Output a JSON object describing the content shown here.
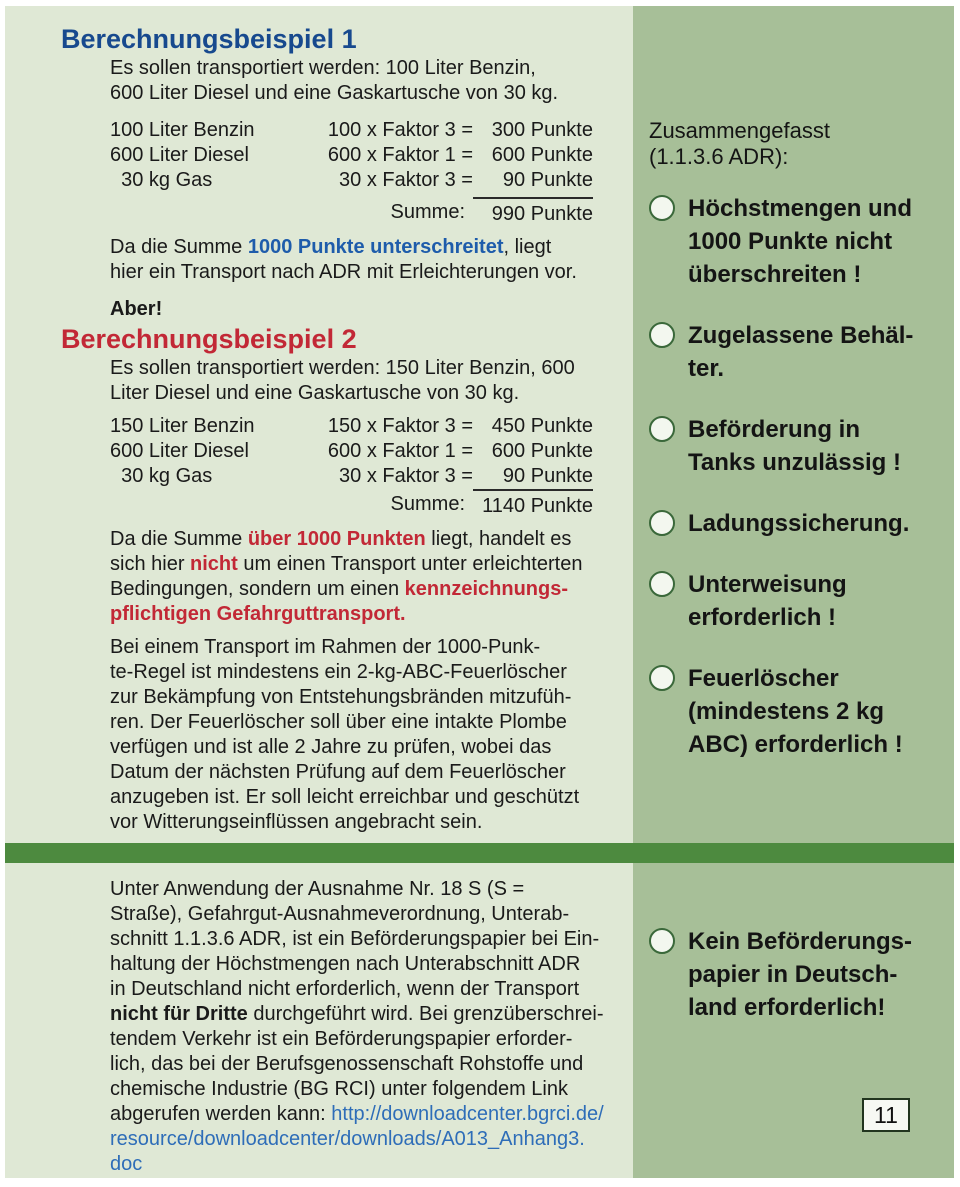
{
  "colors": {
    "left_background": "#dfe8d5",
    "right_background": "#a7bf98",
    "divider_green": "#4d8a3f",
    "heading_blue": "#17498e",
    "heading_red": "#c22836",
    "inline_blue": "#1e5cab",
    "inline_red": "#c22836",
    "link_blue": "#2e6db8"
  },
  "left": {
    "example1": {
      "title": "Berechnungsbeispiel 1",
      "intro": "Es sollen transportiert werden: 100 Liter Benzin,\n600 Liter Diesel und eine Gaskartusche von 30 kg.",
      "rows": [
        {
          "item": "100 Liter Benzin",
          "formula": "100 x Faktor 3 =",
          "points": "300 Punkte"
        },
        {
          "item": "600 Liter Diesel",
          "formula": "600 x Faktor 1 =",
          "points": "600 Punkte"
        },
        {
          "item": "  30 kg Gas",
          "formula": "30 x Faktor 3 =",
          "points": "90 Punkte"
        }
      ],
      "sum_label": "Summe:",
      "sum_value": "990 Punkte",
      "conclusion": [
        {
          "t": "Da die Summe "
        },
        {
          "t": "1000 Punkte unterschreitet",
          "c": "blue"
        },
        {
          "t": ", liegt\nhier ein Transport nach ADR mit Erleichterungen vor."
        }
      ]
    },
    "aber": "Aber!",
    "example2": {
      "title": "Berechnungsbeispiel 2",
      "intro": "Es sollen transportiert werden: 150 Liter Benzin, 600\nLiter Diesel und eine Gaskartusche von 30 kg.",
      "rows": [
        {
          "item": "150 Liter Benzin",
          "formula": "150 x Faktor 3 =",
          "points": "450 Punkte"
        },
        {
          "item": "600 Liter Diesel",
          "formula": "600 x Faktor 1 =",
          "points": "600 Punkte"
        },
        {
          "item": "  30 kg Gas",
          "formula": "30 x Faktor 3 =",
          "points": "90 Punkte"
        }
      ],
      "sum_label": "Summe:",
      "sum_value": "1140 Punkte",
      "conclusion": [
        {
          "t": "Da die Summe "
        },
        {
          "t": "über 1000 Punkten",
          "c": "red"
        },
        {
          "t": " liegt, handelt es\nsich hier "
        },
        {
          "t": "nicht",
          "c": "red"
        },
        {
          "t": " um einen Transport unter erleichterten\nBedingungen, sondern um einen "
        },
        {
          "t": "kennzeichnungs-\npflichtigen Gefahrguttransport.",
          "c": "red"
        }
      ]
    },
    "extinguisher_para": "Bei einem Transport im Rahmen der 1000-Punk-\nte-Regel ist mindestens ein 2-kg-ABC-Feuerlöscher\nzur Bekämpfung von Entstehungsbränden mitzufüh-\nren. Der Feuerlöscher soll über eine intakte Plombe\nverfügen und ist alle 2 Jahre zu prüfen, wobei das\nDatum der nächsten Prüfung auf dem Feuerlöscher\nanzugeben ist. Er soll leicht erreichbar und geschützt\nvor Witterungseinflüssen angebracht sein.",
    "exemption_para": [
      {
        "t": "Unter Anwendung der Ausnahme Nr. 18 S (S =\nStraße), Gefahrgut-Ausnahmeverordnung, Unterab-\nschnitt 1.1.3.6 ADR, ist ein Beförderungspapier bei Ein-\nhaltung der Höchstmengen nach Unterabschnitt ADR\nin Deutschland nicht erforderlich, wenn der Transport\n"
      },
      {
        "t": "nicht für Dritte",
        "c": "b"
      },
      {
        "t": " durchgeführt wird. Bei grenzüberschrei-\ntendem Verkehr ist ein Beförderungspapier erforder-\nlich, das bei der Berufsgenossenschaft Rohstoffe und\nchemische Industrie (BG RCI) unter folgendem Link\nabgerufen werden kann: "
      },
      {
        "t": "http://downloadcenter.bgrci.de/\nresource/downloadcenter/downloads/A013_Anhang3.\ndoc",
        "c": "link"
      }
    ]
  },
  "right": {
    "summary_title": "Zusammengefasst\n(1.1.3.6 ADR):",
    "bullets": [
      "Höchstmengen und\n1000 Punkte nicht\nüberschreiten !",
      "Zugelassene Behäl-\nter.",
      "Beförderung in\nTanks unzulässig !",
      "Ladungssicherung.",
      "Unterweisung\nerforderlich !",
      "Feuerlöscher\n(mindestens 2 kg\nABC) erforderlich !"
    ],
    "bottom_bullet": "Kein Beförderungs-\npapier in Deutsch-\nland erforderlich!",
    "page_number": "11"
  }
}
